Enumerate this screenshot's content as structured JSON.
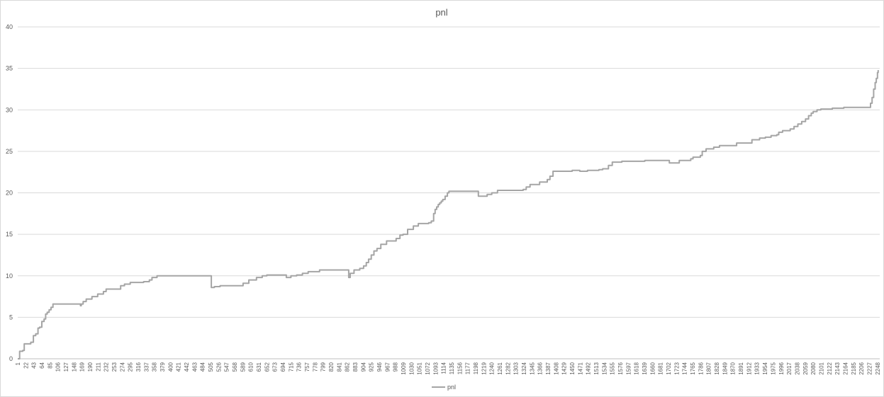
{
  "chart_data": {
    "type": "line",
    "title": "pnl",
    "xlabel": "",
    "ylabel": "",
    "ylim": [
      0,
      40
    ],
    "yticks": [
      0,
      5,
      10,
      15,
      20,
      25,
      30,
      35,
      40
    ],
    "grid": "horizontal",
    "legend_position": "bottom",
    "xtick_labels": [
      "1",
      "22",
      "43",
      "64",
      "85",
      "106",
      "127",
      "148",
      "169",
      "190",
      "211",
      "232",
      "253",
      "274",
      "295",
      "316",
      "337",
      "358",
      "379",
      "400",
      "421",
      "442",
      "463",
      "484",
      "505",
      "526",
      "547",
      "568",
      "589",
      "610",
      "631",
      "652",
      "673",
      "694",
      "715",
      "736",
      "757",
      "778",
      "799",
      "820",
      "841",
      "862",
      "883",
      "904",
      "925",
      "946",
      "967",
      "988",
      "1009",
      "1030",
      "1051",
      "1072",
      "1093",
      "1114",
      "1135",
      "1156",
      "1177",
      "1198",
      "1219",
      "1240",
      "1261",
      "1282",
      "1303",
      "1324",
      "1345",
      "1366",
      "1387",
      "1408",
      "1429",
      "1450",
      "1471",
      "1492",
      "1513",
      "1534",
      "1555",
      "1576",
      "1597",
      "1618",
      "1639",
      "1660",
      "1681",
      "1702",
      "1723",
      "1744",
      "1765",
      "1786",
      "1807",
      "1828",
      "1849",
      "1870",
      "1891",
      "1912",
      "1933",
      "1954",
      "1975",
      "1996",
      "2017",
      "2038",
      "2059",
      "2080",
      "2101",
      "2122",
      "2143",
      "2164",
      "2185",
      "2206",
      "2227",
      "2248"
    ],
    "x_max": 2254,
    "series": [
      {
        "name": "pnl",
        "color": "#a5a5a5",
        "x": [
          1,
          6,
          10,
          14,
          18,
          24,
          35,
          42,
          48,
          54,
          58,
          64,
          70,
          74,
          78,
          83,
          88,
          93,
          98,
          103,
          106,
          110,
          140,
          165,
          167,
          172,
          180,
          195,
          210,
          225,
          232,
          245,
          270,
          280,
          295,
          330,
          345,
          352,
          365,
          380,
          420,
          470,
          505,
          507,
          515,
          530,
          560,
          585,
          590,
          605,
          625,
          640,
          652,
          700,
          703,
          715,
          730,
          745,
          760,
          790,
          830,
          862,
          866,
          870,
          880,
          895,
          905,
          912,
          918,
          925,
          932,
          940,
          950,
          965,
          978,
          990,
          1000,
          1008,
          1020,
          1035,
          1048,
          1060,
          1075,
          1082,
          1088,
          1092,
          1096,
          1100,
          1104,
          1108,
          1112,
          1118,
          1124,
          1128,
          1132,
          1140,
          1200,
          1205,
          1218,
          1228,
          1240,
          1255,
          1270,
          1300,
          1322,
          1330,
          1340,
          1365,
          1385,
          1392,
          1400,
          1450,
          1455,
          1470,
          1490,
          1520,
          1530,
          1545,
          1555,
          1580,
          1640,
          1700,
          1702,
          1704,
          1730,
          1745,
          1760,
          1766,
          1785,
          1790,
          1800,
          1820,
          1835,
          1880,
          1885,
          1900,
          1920,
          1940,
          1955,
          1970,
          1985,
          1990,
          2000,
          2020,
          2030,
          2040,
          2050,
          2060,
          2068,
          2075,
          2080,
          2090,
          2100,
          2110,
          2130,
          2160,
          2205,
          2226,
          2230,
          2234,
          2238,
          2242,
          2245,
          2248,
          2250
        ],
        "values": [
          0.0,
          0.9,
          0.9,
          1.0,
          1.8,
          1.8,
          2.0,
          2.8,
          3.0,
          3.7,
          3.8,
          4.5,
          4.8,
          5.4,
          5.6,
          5.9,
          6.2,
          6.6,
          6.6,
          6.6,
          6.6,
          6.6,
          6.6,
          6.4,
          6.6,
          6.9,
          7.2,
          7.5,
          7.8,
          8.1,
          8.4,
          8.4,
          8.8,
          9.0,
          9.2,
          9.3,
          9.5,
          9.8,
          10.0,
          10.0,
          10.0,
          10.0,
          10.0,
          8.6,
          8.7,
          8.8,
          8.8,
          8.8,
          9.1,
          9.5,
          9.8,
          10.0,
          10.1,
          10.1,
          9.8,
          10.0,
          10.1,
          10.3,
          10.5,
          10.7,
          10.7,
          10.7,
          9.8,
          10.3,
          10.7,
          10.9,
          11.2,
          11.6,
          12.0,
          12.5,
          13.0,
          13.3,
          13.8,
          14.2,
          14.2,
          14.5,
          14.9,
          15.0,
          15.6,
          16.0,
          16.3,
          16.3,
          16.4,
          16.6,
          17.5,
          18.0,
          18.3,
          18.6,
          18.8,
          19.0,
          19.2,
          19.6,
          20.0,
          20.2,
          20.2,
          20.2,
          20.2,
          19.6,
          19.6,
          19.8,
          20.0,
          20.3,
          20.3,
          20.3,
          20.4,
          20.7,
          21.0,
          21.3,
          21.6,
          22.0,
          22.6,
          22.7,
          22.7,
          22.6,
          22.7,
          22.8,
          22.9,
          23.3,
          23.7,
          23.8,
          23.9,
          23.9,
          23.9,
          23.6,
          23.9,
          23.9,
          24.1,
          24.3,
          24.5,
          25.0,
          25.3,
          25.5,
          25.7,
          26.0,
          26.0,
          26.0,
          26.4,
          26.6,
          26.7,
          26.9,
          27.0,
          27.3,
          27.5,
          27.7,
          28.0,
          28.3,
          28.6,
          28.9,
          29.3,
          29.6,
          29.8,
          30.0,
          30.1,
          30.1,
          30.2,
          30.3,
          30.3,
          30.3,
          30.8,
          31.5,
          32.5,
          33.3,
          33.8,
          34.5,
          34.8
        ]
      }
    ]
  }
}
